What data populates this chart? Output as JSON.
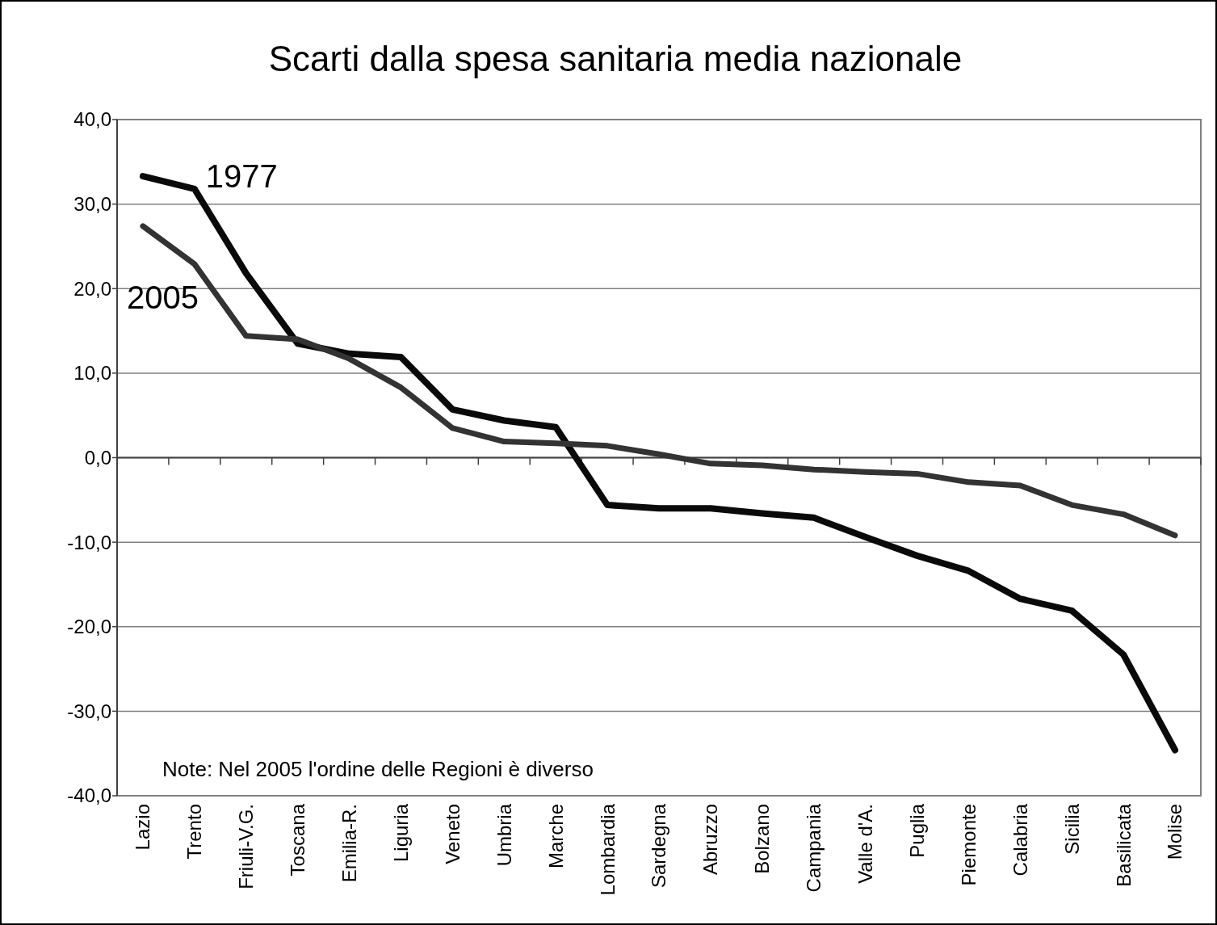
{
  "chart_data": {
    "type": "line",
    "title": "Scarti dalla spesa sanitaria media nazionale",
    "categories": [
      "Lazio",
      "Trento",
      "Friuli-V.G.",
      "Toscana",
      "Emilia-R.",
      "Liguria",
      "Veneto",
      "Umbria",
      "Marche",
      "Lombardia",
      "Sardegna",
      "Abruzzo",
      "Bolzano",
      "Campania",
      "Valle d'A.",
      "Puglia",
      "Piemonte",
      "Calabria",
      "Sicilia",
      "Basilicata",
      "Molise"
    ],
    "series": [
      {
        "name": "1977",
        "color": "#0a0a0a",
        "values": [
          33.3,
          31.8,
          21.8,
          13.5,
          12.3,
          11.9,
          5.7,
          4.4,
          3.6,
          -5.6,
          -6.0,
          -6.0,
          -6.6,
          -7.1,
          -9.4,
          -11.6,
          -13.4,
          -16.7,
          -18.1,
          -23.3,
          -34.6
        ]
      },
      {
        "name": "2005",
        "color": "#333333",
        "values": [
          27.4,
          22.9,
          14.4,
          14.0,
          11.7,
          8.3,
          3.5,
          1.9,
          1.7,
          1.4,
          0.4,
          -0.7,
          -0.9,
          -1.4,
          -1.7,
          -1.9,
          -2.9,
          -3.3,
          -5.6,
          -6.7,
          -9.2
        ]
      }
    ],
    "ylim": [
      -40,
      40
    ],
    "yticks": [
      {
        "value": -40,
        "label": "-40,0"
      },
      {
        "value": -30,
        "label": "-30,0"
      },
      {
        "value": -20,
        "label": "-20,0"
      },
      {
        "value": -10,
        "label": "-10,0"
      },
      {
        "value": 0,
        "label": "0,0"
      },
      {
        "value": 10,
        "label": "10,0"
      },
      {
        "value": 20,
        "label": "20,0"
      },
      {
        "value": 30,
        "label": "30,0"
      },
      {
        "value": 40,
        "label": "40,0"
      }
    ],
    "grid": "y",
    "annotations": [
      "Note: Nel 2005 l'ordine delle Regioni è diverso"
    ]
  }
}
